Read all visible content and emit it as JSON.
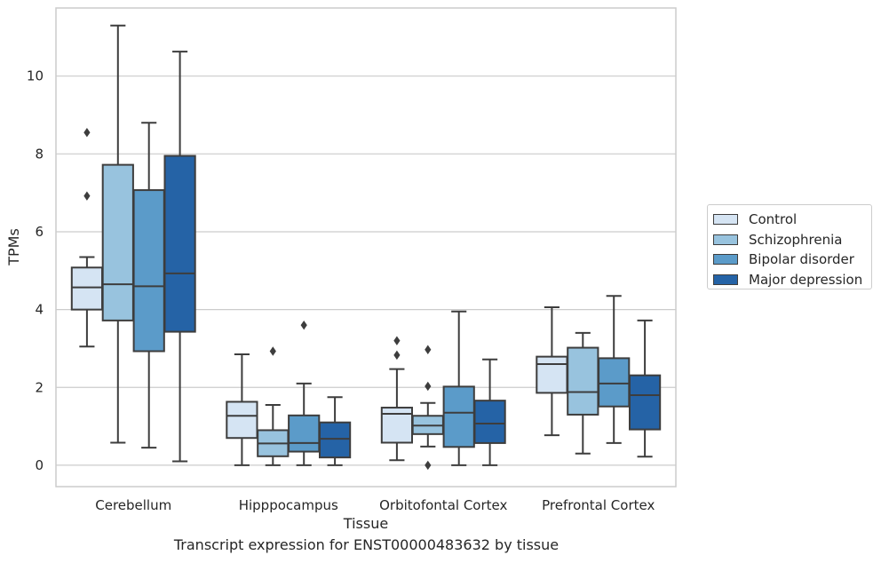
{
  "chart_data": {
    "type": "box",
    "xlabel": "Tissue",
    "ylabel": "TPMs",
    "caption": "Transcript expression for ENST00000483632 by tissue",
    "ylim": [
      -0.55,
      11.75
    ],
    "yticks": [
      0,
      2,
      4,
      6,
      8,
      10
    ],
    "grid": "horizontal",
    "legend_position": "right",
    "categories": [
      "Cerebellum",
      "Hipppocampus",
      "Orbitofontal Cortex",
      "Prefrontal Cortex"
    ],
    "series": [
      {
        "name": "Control",
        "color": "#d5e4f3",
        "boxes": [
          {
            "whisker_low": 3.05,
            "q1": 4.0,
            "median": 4.57,
            "q3": 5.08,
            "whisker_high": 5.35,
            "outliers": [
              6.92,
              8.55
            ]
          },
          {
            "whisker_low": 0.0,
            "q1": 0.7,
            "median": 1.27,
            "q3": 1.63,
            "whisker_high": 2.85,
            "outliers": []
          },
          {
            "whisker_low": 0.13,
            "q1": 0.58,
            "median": 1.32,
            "q3": 1.48,
            "whisker_high": 2.47,
            "outliers": [
              2.83,
              3.2
            ]
          },
          {
            "whisker_low": 0.77,
            "q1": 1.86,
            "median": 2.6,
            "q3": 2.79,
            "whisker_high": 4.06,
            "outliers": []
          }
        ]
      },
      {
        "name": "Schizophrenia",
        "color": "#98c3de",
        "boxes": [
          {
            "whisker_low": 0.58,
            "q1": 3.72,
            "median": 4.65,
            "q3": 7.72,
            "whisker_high": 11.3,
            "outliers": []
          },
          {
            "whisker_low": 0.0,
            "q1": 0.23,
            "median": 0.56,
            "q3": 0.9,
            "whisker_high": 1.55,
            "outliers": [
              2.93
            ]
          },
          {
            "whisker_low": 0.48,
            "q1": 0.8,
            "median": 1.02,
            "q3": 1.27,
            "whisker_high": 1.6,
            "outliers": [
              0.0,
              2.03,
              2.97
            ]
          },
          {
            "whisker_low": 0.3,
            "q1": 1.3,
            "median": 1.88,
            "q3": 3.02,
            "whisker_high": 3.4,
            "outliers": []
          }
        ]
      },
      {
        "name": "Bipolar disorder",
        "color": "#5b9bc9",
        "boxes": [
          {
            "whisker_low": 0.45,
            "q1": 2.93,
            "median": 4.6,
            "q3": 7.07,
            "whisker_high": 8.8,
            "outliers": []
          },
          {
            "whisker_low": 0.0,
            "q1": 0.35,
            "median": 0.57,
            "q3": 1.28,
            "whisker_high": 2.1,
            "outliers": [
              3.6
            ]
          },
          {
            "whisker_low": 0.0,
            "q1": 0.47,
            "median": 1.35,
            "q3": 2.02,
            "whisker_high": 3.95,
            "outliers": []
          },
          {
            "whisker_low": 0.57,
            "q1": 1.51,
            "median": 2.1,
            "q3": 2.75,
            "whisker_high": 4.35,
            "outliers": []
          }
        ]
      },
      {
        "name": "Major depression",
        "color": "#2563a6",
        "boxes": [
          {
            "whisker_low": 0.1,
            "q1": 3.43,
            "median": 4.93,
            "q3": 7.95,
            "whisker_high": 10.63,
            "outliers": []
          },
          {
            "whisker_low": 0.0,
            "q1": 0.2,
            "median": 0.68,
            "q3": 1.1,
            "whisker_high": 1.75,
            "outliers": []
          },
          {
            "whisker_low": 0.0,
            "q1": 0.57,
            "median": 1.07,
            "q3": 1.66,
            "whisker_high": 2.72,
            "outliers": []
          },
          {
            "whisker_low": 0.22,
            "q1": 0.92,
            "median": 1.8,
            "q3": 2.31,
            "whisker_high": 3.72,
            "outliers": []
          }
        ]
      }
    ]
  }
}
